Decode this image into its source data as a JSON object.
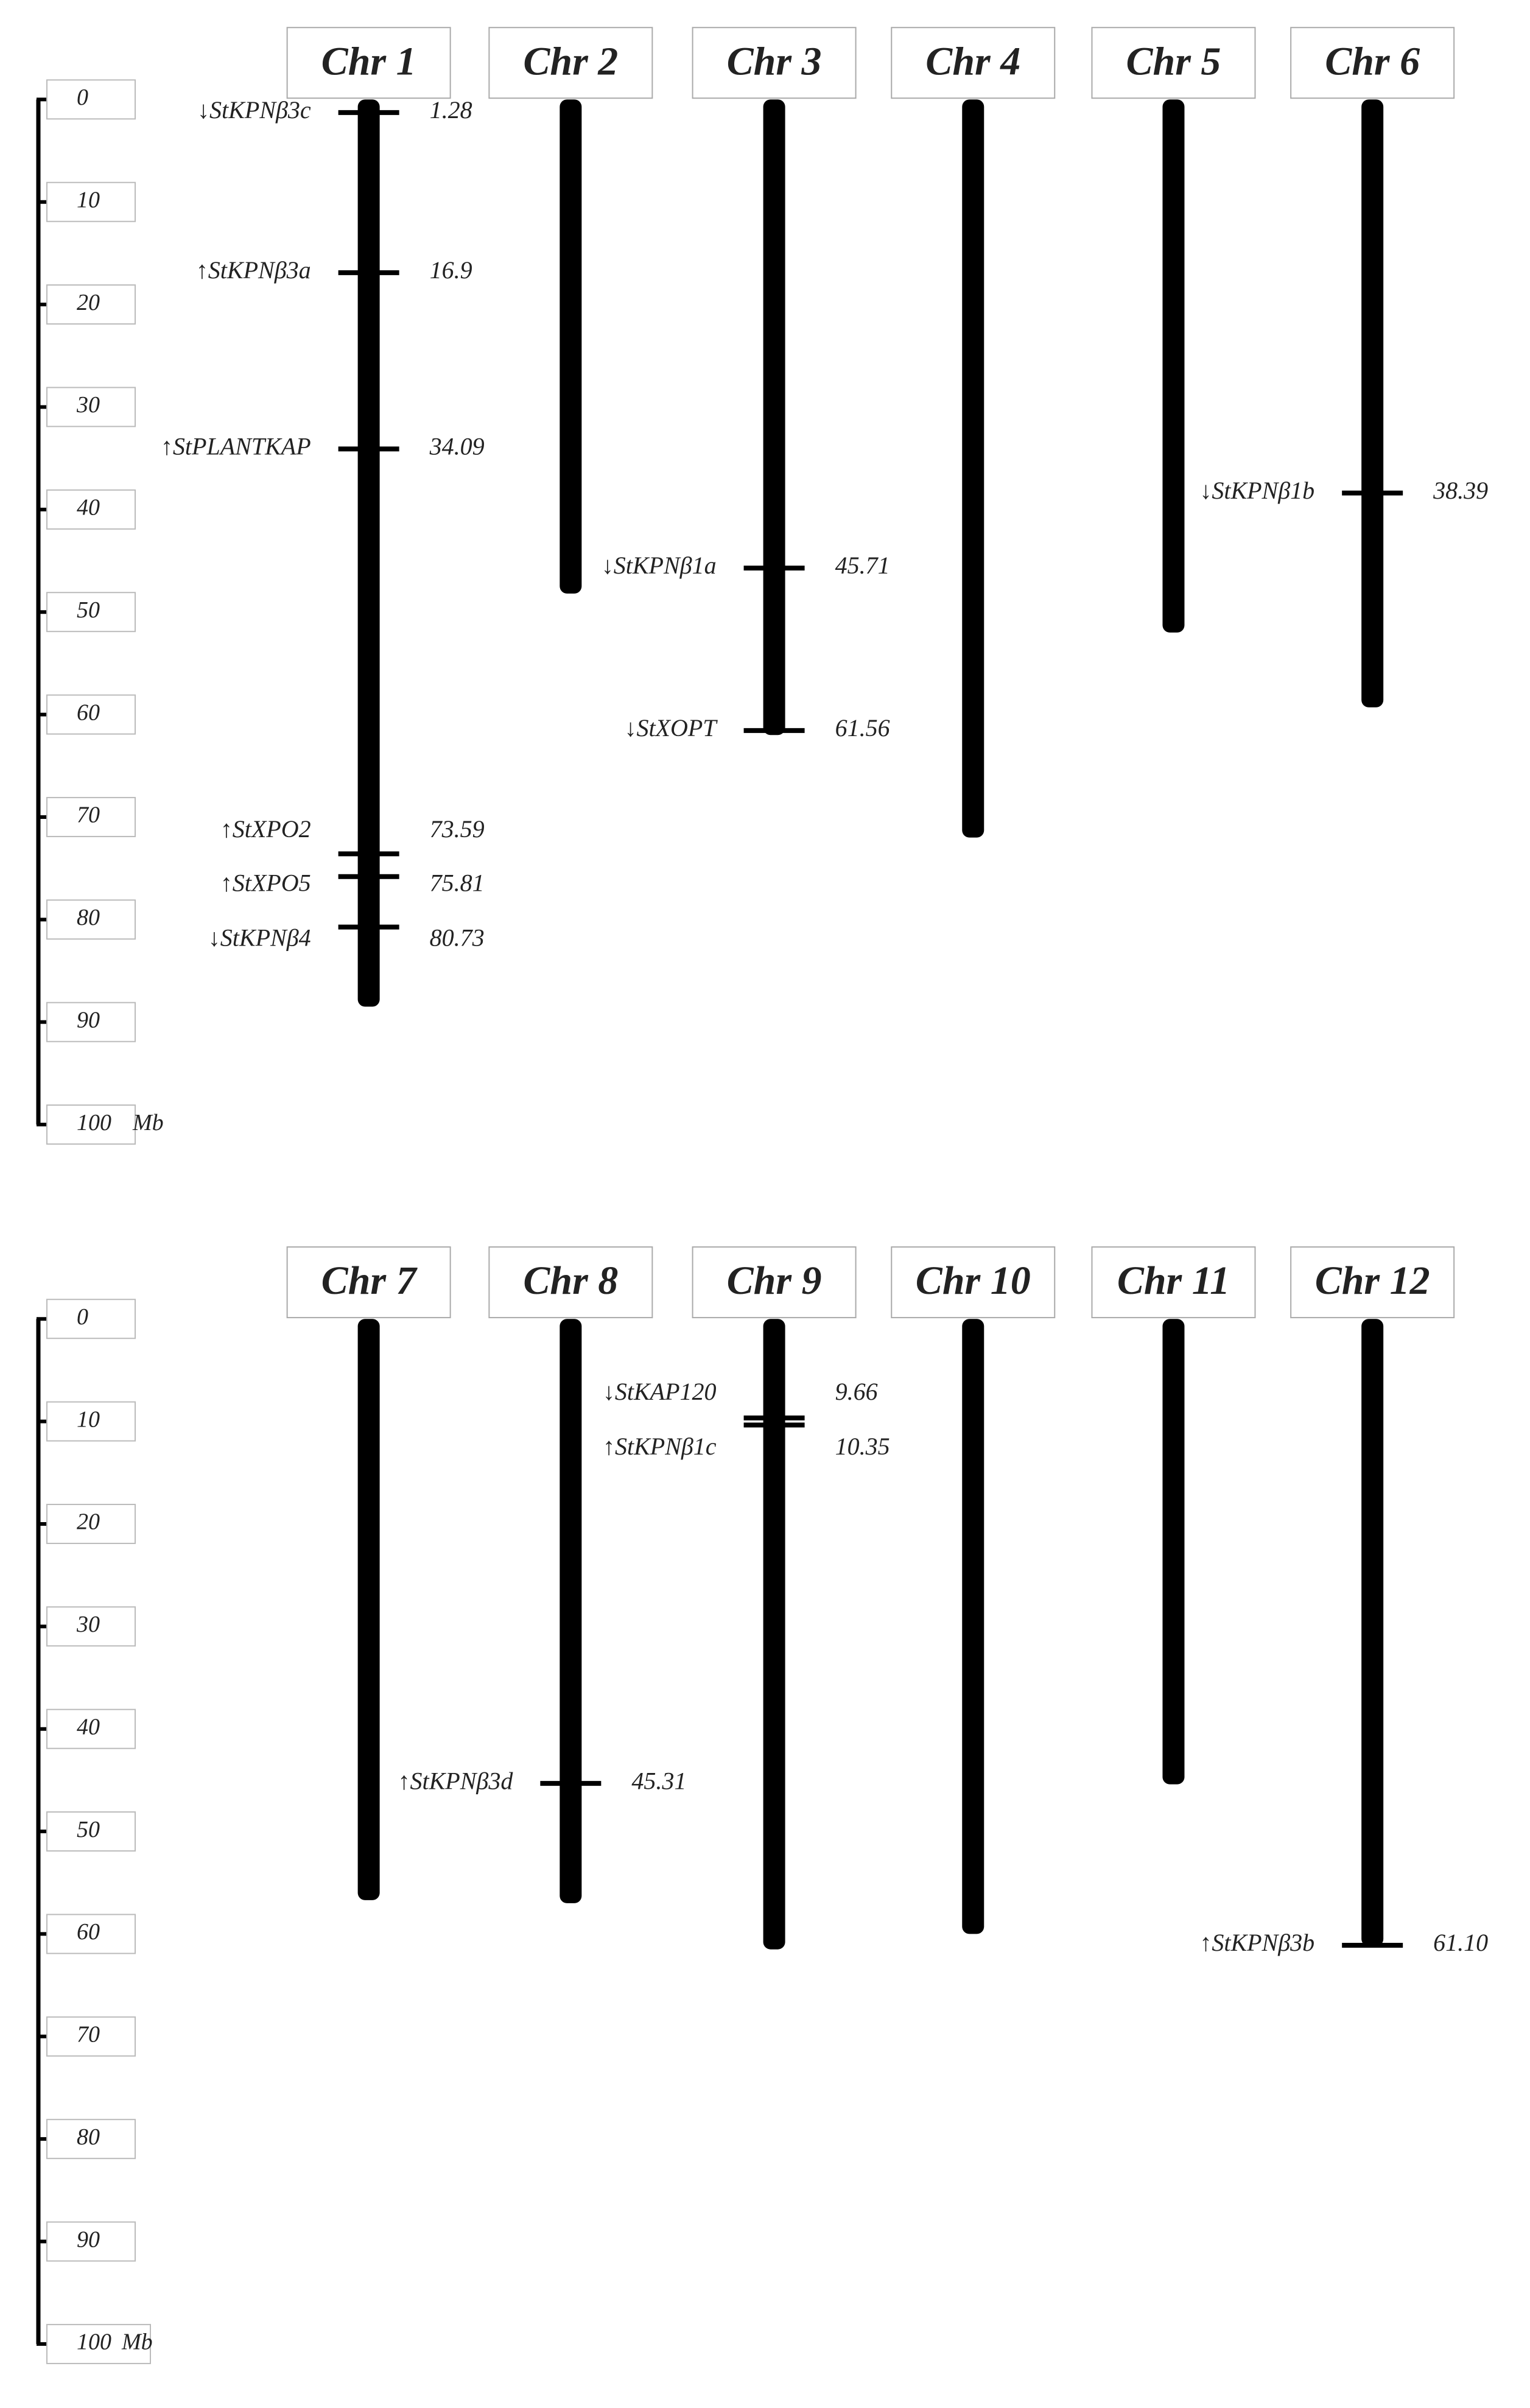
{
  "panels": [
    {
      "scale": {
        "ticks": [
          0,
          10,
          20,
          30,
          40,
          50,
          60,
          70,
          80,
          90,
          100
        ],
        "unit": "Mb"
      },
      "chromosomes": [
        {
          "name": "Chr 1",
          "length": 88.5,
          "genes": [
            {
              "label": "↓StKPNβ3c",
              "position": 1.28
            },
            {
              "label": "↑StKPNβ3a",
              "position": 16.9
            },
            {
              "label": "↑StPLANTKAP",
              "position": 34.09
            },
            {
              "label": "↑StXPO2",
              "position": 73.59
            },
            {
              "label": "↑StXPO5",
              "position": 75.81
            },
            {
              "label": "↓StKPNβ4",
              "position": 80.73
            }
          ]
        },
        {
          "name": "Chr 2",
          "length": 48.2,
          "genes": []
        },
        {
          "name": "Chr 3",
          "length": 62,
          "genes": [
            {
              "label": "↓StKPNβ1a",
              "position": 45.71
            },
            {
              "label": "↓StXOPT",
              "position": 61.56
            }
          ]
        },
        {
          "name": "Chr 4",
          "length": 72,
          "genes": []
        },
        {
          "name": "Chr 5",
          "length": 52,
          "genes": []
        },
        {
          "name": "Chr 6",
          "length": 59.3,
          "genes": [
            {
              "label": "↓StKPNβ1b",
              "position": 38.39
            }
          ]
        }
      ]
    },
    {
      "scale": {
        "ticks": [
          0,
          10,
          20,
          30,
          40,
          50,
          60,
          70,
          80,
          90,
          100
        ],
        "unit": "Mb"
      },
      "chromosomes": [
        {
          "name": "Chr 7",
          "length": 56.7,
          "genes": []
        },
        {
          "name": "Chr 8",
          "length": 57,
          "genes": [
            {
              "label": "↑StKPNβ3d",
              "position": 45.31
            }
          ]
        },
        {
          "name": "Chr 9",
          "length": 61.5,
          "genes": [
            {
              "label": "↓StKAP120",
              "position": 9.66
            },
            {
              "label": "↑StKPNβ1c",
              "position": 10.35
            }
          ]
        },
        {
          "name": "Chr 10",
          "length": 60,
          "genes": []
        },
        {
          "name": "Chr 11",
          "length": 45.4,
          "genes": []
        },
        {
          "name": "Chr 12",
          "length": 61.2,
          "genes": [
            {
              "label": "↑StKPNβ3b",
              "position": {
                "value": 61.1,
                "label": "61.10"
              }
            }
          ]
        }
      ]
    }
  ]
}
